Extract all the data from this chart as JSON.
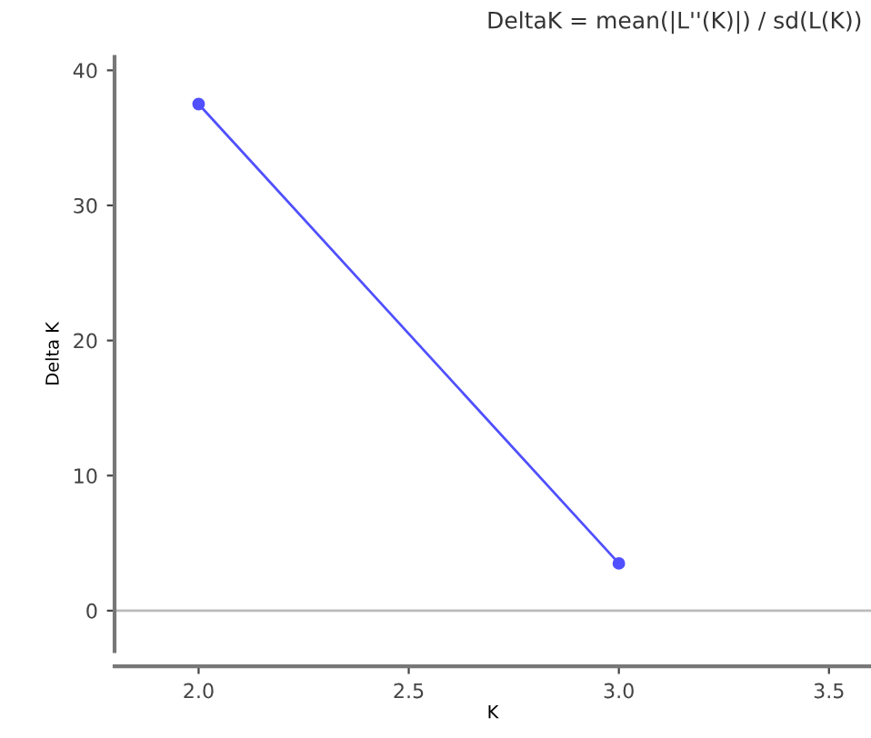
{
  "chart_data": {
    "type": "line",
    "title": "DeltaK = mean(|L''(K)|) / sd(L(K))",
    "xlabel": "K",
    "ylabel": "Delta K",
    "x": [
      2.0,
      3.0
    ],
    "series": [
      {
        "color": "#5050ff",
        "values": [
          37.5,
          3.5
        ]
      }
    ],
    "xlim": [
      1.8,
      3.6
    ],
    "xticks": [
      {
        "value": 2,
        "label": "2.0"
      },
      2.5,
      {
        "value": 3,
        "label": "3.0"
      },
      3.5
    ],
    "ylim": [
      -3,
      41
    ],
    "yticks": [
      0,
      10,
      20,
      30,
      40
    ],
    "ref_lines": [
      {
        "axis": "y",
        "value": 0,
        "color": "#bbbbbb"
      }
    ],
    "marker": "circle",
    "line_style": "solid",
    "grid": false,
    "legend": false
  }
}
